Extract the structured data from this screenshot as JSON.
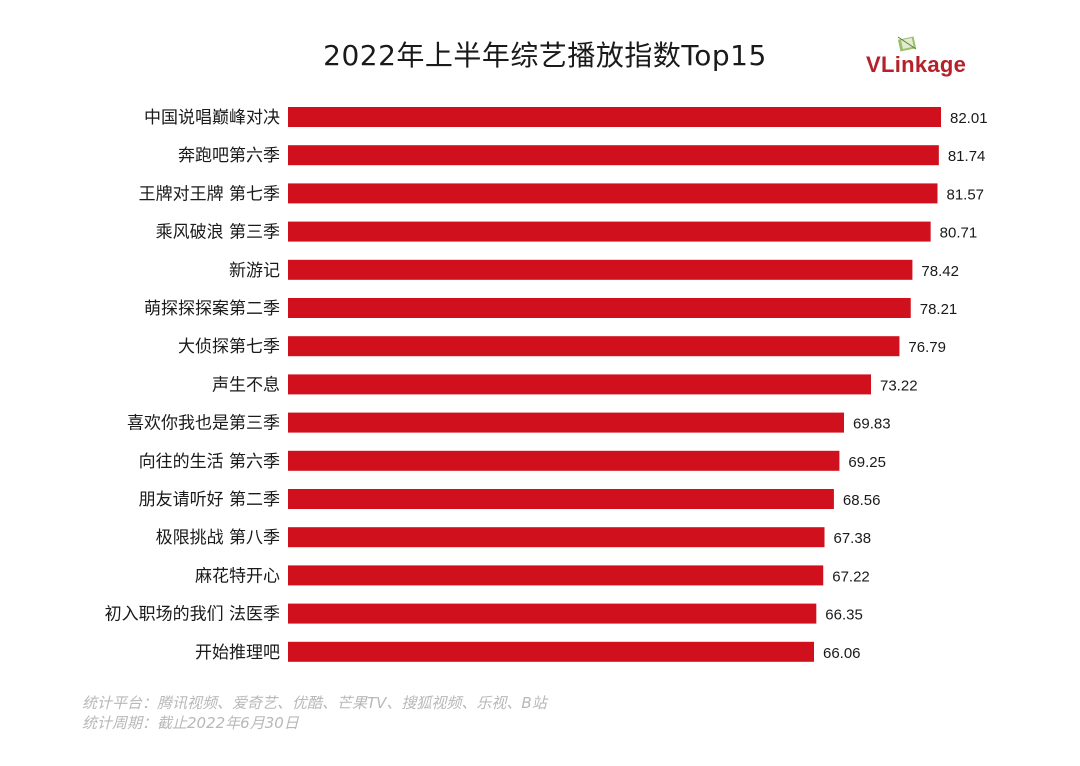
{
  "title": "2022年上半年综艺播放指数Top15",
  "logo": {
    "text": "VLinkage"
  },
  "colors": {
    "bar": "#d0101c",
    "brand": "#b5202a"
  },
  "chart_data": {
    "type": "bar",
    "orientation": "horizontal",
    "title": "2022年上半年综艺播放指数Top15",
    "xlabel": "",
    "ylabel": "",
    "grid": false,
    "legend": "none",
    "xlim": [
      0,
      82.01
    ],
    "categories": [
      "中国说唱巅峰对决",
      "奔跑吧第六季",
      "王牌对王牌 第七季",
      "乘风破浪 第三季",
      "新游记",
      "萌探探探案第二季",
      "大侦探第七季",
      "声生不息",
      "喜欢你我也是第三季",
      "向往的生活 第六季",
      "朋友请听好 第二季",
      "极限挑战 第八季",
      "麻花特开心",
      "初入职场的我们 法医季",
      "开始推理吧"
    ],
    "values": [
      82.01,
      81.74,
      81.57,
      80.71,
      78.42,
      78.21,
      76.79,
      73.22,
      69.83,
      69.25,
      68.56,
      67.38,
      67.22,
      66.35,
      66.06
    ],
    "value_labels": [
      "82.01",
      "81.74",
      "81.57",
      "80.71",
      "78.42",
      "78.21",
      "76.79",
      "73.22",
      "69.83",
      "69.25",
      "68.56",
      "67.38",
      "67.22",
      "66.35",
      "66.06"
    ]
  },
  "footnotes": {
    "platforms": "统计平台：腾讯视频、爱奇艺、优酷、芒果TV、搜狐视频、乐视、B站",
    "period": "统计周期：截止2022年6月30日"
  }
}
